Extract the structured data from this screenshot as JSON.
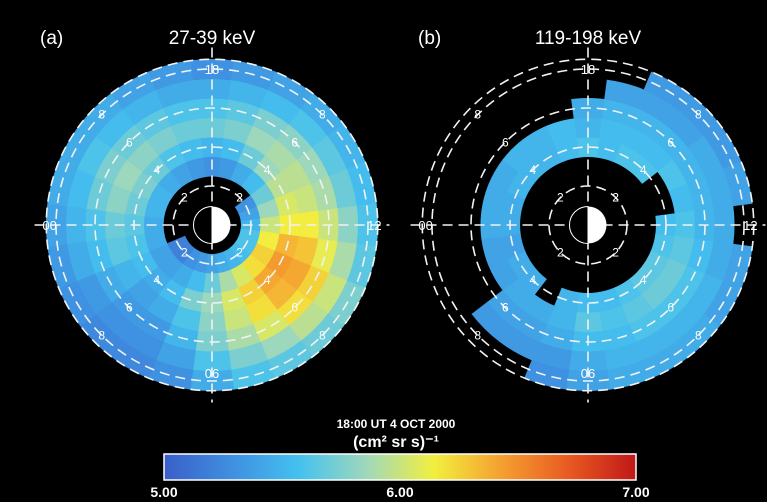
{
  "chart_data": {
    "type": "heatmap",
    "timestamp": "18:00 UT 4 OCT 2000",
    "units": "(cm² sr s)⁻¹",
    "colorbar": {
      "min": 5.0,
      "max": 7.0,
      "tick_labels": [
        "5.00",
        "6.00",
        "7.00"
      ],
      "colors": [
        "#3a5fc8",
        "#3f8fe0",
        "#44c1ef",
        "#9fd8bb",
        "#f2ef3e",
        "#f5a030",
        "#e85a22",
        "#c01818"
      ]
    },
    "polar_axes": {
      "mlt_labels": [
        "18",
        "12",
        "06",
        "00"
      ],
      "l_shell_labels": [
        "2",
        "4",
        "6",
        "8"
      ],
      "ring_boundaries": [
        1.5,
        2.5,
        3.5,
        4.5,
        5.5,
        6.5,
        7.5,
        8.5
      ]
    },
    "panels": [
      {
        "letter": "(a)",
        "energy_label": "27-39 keV",
        "sectors": [
          {
            "mlt": 18,
            "values": [
              null,
              5.3,
              5.5,
              5.7,
              5.6,
              5.45,
              5.3,
              5.4
            ]
          },
          {
            "mlt": 19,
            "values": [
              null,
              5.35,
              5.55,
              5.75,
              5.65,
              5.5,
              5.35,
              5.3
            ]
          },
          {
            "mlt": 20,
            "values": [
              null,
              5.45,
              5.7,
              5.85,
              5.75,
              5.55,
              5.4,
              5.35
            ]
          },
          {
            "mlt": 21,
            "values": [
              null,
              5.55,
              5.85,
              5.9,
              5.8,
              5.6,
              5.45,
              5.4
            ]
          },
          {
            "mlt": 22,
            "values": [
              5.3,
              5.7,
              5.95,
              5.95,
              5.85,
              5.65,
              5.5,
              5.45
            ]
          },
          {
            "mlt": 23,
            "values": [
              5.4,
              5.85,
              6.05,
              6.0,
              5.9,
              5.7,
              5.55,
              5.5
            ]
          },
          {
            "mlt": 0,
            "values": [
              5.5,
              6.0,
              6.15,
              6.15,
              6.0,
              5.8,
              5.6,
              5.55
            ]
          },
          {
            "mlt": 1,
            "values": [
              5.6,
              6.15,
              6.35,
              6.3,
              6.1,
              5.9,
              5.65,
              5.6
            ]
          },
          {
            "mlt": 2,
            "values": [
              5.6,
              6.25,
              6.45,
              6.4,
              6.25,
              6.0,
              5.75,
              5.6
            ]
          },
          {
            "mlt": 3,
            "values": [
              5.55,
              6.2,
              6.4,
              6.35,
              6.2,
              5.95,
              5.7,
              5.55
            ]
          },
          {
            "mlt": 4,
            "values": [
              5.5,
              6.05,
              6.25,
              6.2,
              6.05,
              5.85,
              5.65,
              5.55
            ]
          },
          {
            "mlt": 5,
            "values": [
              5.45,
              5.9,
              6.05,
              6.0,
              5.9,
              5.75,
              5.6,
              5.5
            ]
          },
          {
            "mlt": 6,
            "values": [
              5.4,
              5.7,
              5.85,
              5.8,
              5.75,
              5.6,
              5.45,
              5.45
            ]
          },
          {
            "mlt": 7,
            "values": [
              5.35,
              5.55,
              5.75,
              5.6,
              5.5,
              5.4,
              5.3,
              5.25
            ]
          },
          {
            "mlt": 8,
            "values": [
              5.3,
              5.45,
              5.55,
              5.45,
              5.35,
              5.3,
              5.25,
              5.2
            ]
          },
          {
            "mlt": 9,
            "values": [
              5.2,
              5.4,
              5.45,
              5.4,
              5.35,
              5.3,
              5.25,
              5.2
            ]
          },
          {
            "mlt": 10,
            "values": [
              5.2,
              5.4,
              5.55,
              5.5,
              5.45,
              5.35,
              5.3,
              5.25
            ]
          },
          {
            "mlt": 11,
            "values": [
              null,
              5.45,
              5.6,
              5.65,
              5.55,
              5.45,
              5.35,
              5.3
            ]
          },
          {
            "mlt": 12,
            "values": [
              null,
              5.45,
              5.65,
              5.7,
              5.6,
              5.5,
              5.4,
              5.35
            ]
          },
          {
            "mlt": 13,
            "values": [
              null,
              5.5,
              5.7,
              5.8,
              5.7,
              5.55,
              5.45,
              5.4
            ]
          },
          {
            "mlt": 14,
            "values": [
              null,
              5.5,
              5.75,
              5.85,
              5.75,
              5.6,
              5.45,
              5.4
            ]
          },
          {
            "mlt": 15,
            "values": [
              null,
              5.45,
              5.7,
              5.8,
              5.7,
              5.55,
              5.45,
              5.35
            ]
          },
          {
            "mlt": 16,
            "values": [
              null,
              5.4,
              5.6,
              5.75,
              5.65,
              5.5,
              5.4,
              5.35
            ]
          },
          {
            "mlt": 17,
            "values": [
              null,
              5.35,
              5.55,
              5.7,
              5.6,
              5.45,
              5.35,
              5.3
            ]
          }
        ]
      },
      {
        "letter": "(b)",
        "energy_label": "119-198 keV",
        "sectors": [
          {
            "mlt": 18,
            "values": [
              null,
              null,
              5.6,
              5.5,
              5.45,
              null,
              null,
              null
            ]
          },
          {
            "mlt": 19,
            "values": [
              null,
              null,
              5.55,
              5.55,
              5.5,
              5.4,
              null,
              null
            ]
          },
          {
            "mlt": 20,
            "values": [
              null,
              null,
              5.6,
              5.55,
              5.5,
              5.4,
              5.35,
              null
            ]
          },
          {
            "mlt": 21,
            "values": [
              null,
              null,
              5.6,
              5.55,
              5.5,
              5.4,
              5.35,
              5.3
            ]
          },
          {
            "mlt": 22,
            "values": [
              null,
              null,
              null,
              5.6,
              5.5,
              5.45,
              5.35,
              5.3
            ]
          },
          {
            "mlt": 23,
            "values": [
              null,
              null,
              null,
              5.55,
              5.5,
              5.45,
              5.4,
              null
            ]
          },
          {
            "mlt": 0,
            "values": [
              null,
              null,
              5.55,
              5.6,
              5.5,
              5.45,
              null,
              null
            ]
          },
          {
            "mlt": 1,
            "values": [
              null,
              null,
              5.6,
              5.65,
              5.55,
              5.45,
              5.4,
              5.35
            ]
          },
          {
            "mlt": 2,
            "values": [
              null,
              null,
              5.65,
              5.7,
              5.6,
              5.5,
              5.4,
              5.35
            ]
          },
          {
            "mlt": 3,
            "values": [
              null,
              null,
              5.65,
              5.7,
              5.6,
              5.5,
              5.45,
              5.4
            ]
          },
          {
            "mlt": 4,
            "values": [
              null,
              null,
              5.6,
              5.65,
              5.6,
              5.5,
              5.45,
              5.4
            ]
          },
          {
            "mlt": 5,
            "values": [
              null,
              null,
              5.55,
              5.6,
              5.55,
              5.5,
              5.45,
              5.4
            ]
          },
          {
            "mlt": 6,
            "values": [
              null,
              null,
              5.55,
              5.65,
              5.55,
              5.45,
              5.4,
              5.35
            ]
          },
          {
            "mlt": 7,
            "values": [
              null,
              null,
              5.5,
              5.5,
              5.45,
              5.35,
              5.3,
              null
            ]
          },
          {
            "mlt": 8,
            "values": [
              null,
              null,
              null,
              5.45,
              5.4,
              5.35,
              null,
              null
            ]
          },
          {
            "mlt": 9,
            "values": [
              null,
              null,
              5.45,
              5.45,
              5.4,
              5.35,
              null,
              null
            ]
          },
          {
            "mlt": 10,
            "values": [
              null,
              null,
              5.45,
              5.4,
              null,
              null,
              null,
              null
            ]
          },
          {
            "mlt": 11,
            "values": [
              null,
              null,
              5.4,
              5.4,
              null,
              null,
              null,
              null
            ]
          },
          {
            "mlt": 12,
            "values": [
              null,
              null,
              5.45,
              5.45,
              null,
              null,
              null,
              null
            ]
          },
          {
            "mlt": 13,
            "values": [
              null,
              null,
              5.45,
              5.45,
              null,
              null,
              null,
              null
            ]
          },
          {
            "mlt": 14,
            "values": [
              null,
              null,
              5.5,
              5.45,
              null,
              null,
              null,
              null
            ]
          },
          {
            "mlt": 15,
            "values": [
              null,
              null,
              5.5,
              5.5,
              null,
              null,
              null,
              null
            ]
          },
          {
            "mlt": 16,
            "values": [
              null,
              null,
              5.5,
              5.5,
              null,
              null,
              null,
              null
            ]
          },
          {
            "mlt": 17,
            "values": [
              null,
              null,
              5.55,
              5.55,
              null,
              null,
              null,
              null
            ]
          }
        ]
      }
    ]
  }
}
